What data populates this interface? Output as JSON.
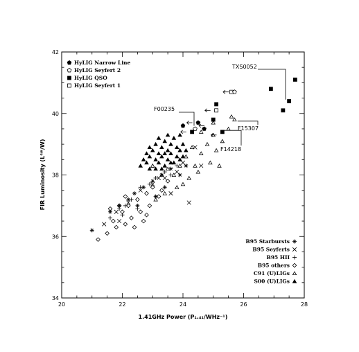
{
  "chart_data": {
    "type": "scatter",
    "xlabel": "1.41GHz Power (P₁.₄₁/WHz⁻¹)",
    "ylabel": "FIR Luminosity (Lᶠᴵᴿ/W)",
    "xlim": [
      20,
      28
    ],
    "ylim": [
      34,
      42
    ],
    "xticks": [
      "20",
      "22",
      "24",
      "26",
      "28"
    ],
    "yticks": [
      "34",
      "36",
      "38",
      "40",
      "42"
    ],
    "legend_top": [
      {
        "label": "HyLIG Narrow Line",
        "marker": "filled-pentagon"
      },
      {
        "label": "HyLIG Seyfert 2",
        "marker": "open-pentagon"
      },
      {
        "label": "HyLIG QSO",
        "marker": "filled-square"
      },
      {
        "label": "HyLIG Seyfert 1",
        "marker": "open-square"
      }
    ],
    "legend_bottom": [
      {
        "label": "B95 Starbursts",
        "marker": "asterisk"
      },
      {
        "label": "B95 Seyferts",
        "marker": "cross"
      },
      {
        "label": "B95 HII",
        "marker": "plus"
      },
      {
        "label": "B95 others",
        "marker": "open-diamond"
      },
      {
        "label": "C91 (U)LIGs",
        "marker": "open-triangle"
      },
      {
        "label": "S00 (U)LIGs",
        "marker": "filled-triangle"
      }
    ],
    "series": [
      {
        "marker": "filled-triangle",
        "points": [
          [
            22.6,
            38.3
          ],
          [
            22.7,
            38.5
          ],
          [
            22.8,
            38.4
          ],
          [
            22.8,
            38.7
          ],
          [
            22.9,
            38.6
          ],
          [
            22.9,
            38.9
          ],
          [
            23.0,
            38.3
          ],
          [
            23.0,
            38.8
          ],
          [
            23.1,
            38.5
          ],
          [
            23.1,
            39.0
          ],
          [
            23.2,
            38.7
          ],
          [
            23.2,
            38.4
          ],
          [
            23.3,
            38.9
          ],
          [
            23.3,
            38.6
          ],
          [
            23.4,
            38.3
          ],
          [
            23.4,
            39.1
          ],
          [
            23.5,
            38.8
          ],
          [
            23.5,
            38.5
          ],
          [
            23.6,
            39.0
          ],
          [
            23.6,
            38.7
          ],
          [
            23.7,
            38.4
          ],
          [
            23.7,
            39.2
          ],
          [
            23.8,
            38.9
          ],
          [
            23.8,
            38.6
          ],
          [
            23.9,
            39.3
          ],
          [
            23.9,
            38.8
          ],
          [
            24.0,
            39.0
          ],
          [
            24.0,
            38.6
          ],
          [
            23.2,
            39.2
          ],
          [
            23.4,
            38.7
          ],
          [
            23.6,
            38.4
          ],
          [
            23.9,
            38.5
          ],
          [
            22.9,
            38.2
          ],
          [
            23.1,
            38.2
          ],
          [
            23.5,
            39.3
          ],
          [
            23.3,
            38.2
          ],
          [
            24.1,
            38.8
          ]
        ]
      },
      {
        "marker": "open-triangle",
        "points": [
          [
            23.0,
            38.3
          ],
          [
            23.3,
            38.0
          ],
          [
            23.5,
            38.2
          ],
          [
            23.7,
            38.0
          ],
          [
            23.9,
            38.3
          ],
          [
            24.1,
            38.6
          ],
          [
            24.3,
            38.9
          ],
          [
            24.4,
            38.3
          ],
          [
            24.6,
            38.7
          ],
          [
            24.8,
            39.0
          ],
          [
            24.9,
            38.4
          ],
          [
            25.0,
            39.3
          ],
          [
            25.1,
            38.8
          ],
          [
            25.3,
            39.1
          ],
          [
            25.5,
            39.5
          ],
          [
            25.2,
            38.3
          ],
          [
            24.2,
            37.9
          ],
          [
            23.8,
            37.6
          ],
          [
            23.4,
            37.4
          ],
          [
            23.1,
            37.2
          ],
          [
            24.6,
            39.4
          ],
          [
            25.0,
            39.7
          ],
          [
            24.0,
            37.7
          ],
          [
            25.6,
            39.9
          ],
          [
            25.7,
            39.8
          ],
          [
            24.5,
            38.1
          ]
        ]
      },
      {
        "marker": "open-diamond",
        "points": [
          [
            21.2,
            35.9
          ],
          [
            21.5,
            36.1
          ],
          [
            21.7,
            36.5
          ],
          [
            21.8,
            36.3
          ],
          [
            22.0,
            36.8
          ],
          [
            22.1,
            36.4
          ],
          [
            22.2,
            37.0
          ],
          [
            22.3,
            36.6
          ],
          [
            22.5,
            37.2
          ],
          [
            22.6,
            36.8
          ],
          [
            22.8,
            37.4
          ],
          [
            22.9,
            37.0
          ],
          [
            23.0,
            37.6
          ],
          [
            22.4,
            36.3
          ],
          [
            22.7,
            36.5
          ],
          [
            23.2,
            37.3
          ],
          [
            23.5,
            37.8
          ],
          [
            21.9,
            37.0
          ],
          [
            22.1,
            37.3
          ],
          [
            21.6,
            36.9
          ],
          [
            23.3,
            37.5
          ],
          [
            22.8,
            36.7
          ]
        ]
      },
      {
        "marker": "cross",
        "points": [
          [
            21.4,
            36.4
          ],
          [
            21.8,
            36.8
          ],
          [
            22.2,
            37.1
          ],
          [
            22.6,
            37.5
          ],
          [
            23.0,
            37.7
          ],
          [
            23.4,
            37.9
          ],
          [
            23.8,
            38.1
          ],
          [
            24.0,
            38.4
          ],
          [
            24.4,
            38.9
          ],
          [
            24.6,
            38.3
          ],
          [
            23.6,
            37.4
          ],
          [
            24.2,
            37.1
          ],
          [
            21.9,
            36.5
          ],
          [
            23.2,
            37.9
          ]
        ]
      },
      {
        "marker": "plus",
        "points": [
          [
            21.6,
            36.6
          ],
          [
            21.9,
            36.9
          ],
          [
            22.1,
            37.0
          ],
          [
            22.3,
            37.2
          ],
          [
            22.6,
            37.6
          ],
          [
            22.9,
            37.7
          ],
          [
            23.1,
            37.9
          ],
          [
            23.4,
            38.1
          ],
          [
            23.6,
            38.0
          ],
          [
            23.8,
            38.3
          ],
          [
            22.5,
            36.9
          ],
          [
            22.0,
            36.7
          ]
        ]
      },
      {
        "marker": "asterisk",
        "points": [
          [
            21.0,
            36.2
          ],
          [
            21.6,
            36.8
          ],
          [
            21.9,
            37.0
          ],
          [
            22.2,
            37.2
          ],
          [
            22.4,
            37.4
          ],
          [
            22.7,
            37.6
          ],
          [
            23.0,
            37.8
          ],
          [
            23.3,
            38.0
          ],
          [
            23.6,
            38.2
          ],
          [
            23.9,
            38.0
          ],
          [
            23.1,
            37.3
          ],
          [
            24.1,
            38.3
          ],
          [
            22.5,
            37.0
          ],
          [
            23.4,
            37.6
          ]
        ]
      },
      {
        "marker": "filled-square",
        "points": [
          [
            24.3,
            39.4
          ],
          [
            25.0,
            39.8
          ],
          [
            25.1,
            40.3
          ],
          [
            25.3,
            39.4
          ],
          [
            26.9,
            40.8
          ],
          [
            27.3,
            40.1
          ],
          [
            27.5,
            40.4
          ],
          [
            27.7,
            41.1
          ]
        ]
      },
      {
        "marker": "open-square",
        "points": [
          [
            25.1,
            40.1
          ],
          [
            25.6,
            40.7
          ]
        ]
      },
      {
        "marker": "filled-pentagon",
        "points": [
          [
            24.0,
            39.6
          ],
          [
            24.5,
            39.7
          ],
          [
            24.7,
            39.5
          ]
        ]
      },
      {
        "marker": "open-pentagon",
        "points": [
          [
            24.4,
            39.5
          ],
          [
            25.7,
            40.7
          ]
        ]
      }
    ],
    "upper_limit_arrows": [
      [
        24.2,
        39.4
      ],
      [
        24.4,
        39.7
      ],
      [
        25.0,
        40.1
      ],
      [
        25.6,
        40.7
      ],
      [
        24.8,
        39.6
      ],
      [
        25.2,
        39.3
      ]
    ],
    "annotations": [
      {
        "label": "TXS0052",
        "point": [
          27.5,
          40.4
        ]
      },
      {
        "label": "F00235",
        "point": [
          24.6,
          39.6
        ]
      },
      {
        "label": "F15307",
        "point": [
          25.7,
          39.8
        ]
      },
      {
        "label": "F14218",
        "point": [
          25.3,
          39.4
        ]
      }
    ]
  }
}
